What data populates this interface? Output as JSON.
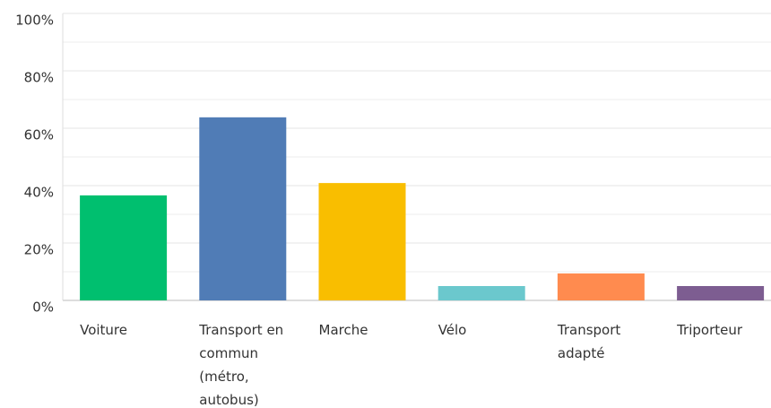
{
  "chart_data": {
    "type": "bar",
    "categories": [
      "Voiture",
      "Transport en commun (métro, autobus)",
      "Marche",
      "Vélo",
      "Transport adapté",
      "Triporteur"
    ],
    "values": [
      36.6,
      63.8,
      40.9,
      5,
      9.4,
      5
    ],
    "colors": [
      "#00bf6f",
      "#507cb6",
      "#f9be00",
      "#6bc8cd",
      "#ff8b4f",
      "#7d5d91"
    ],
    "ylim": [
      0,
      100
    ],
    "yticks": [
      {
        "value": 0,
        "label": "0%"
      },
      {
        "value": 20,
        "label": "20%"
      },
      {
        "value": 40,
        "label": "40%"
      },
      {
        "value": 60,
        "label": "60%"
      },
      {
        "value": 80,
        "label": "80%"
      },
      {
        "value": 100,
        "label": "100%"
      }
    ],
    "minor_yticks": [
      10,
      30,
      50,
      70,
      90
    ],
    "grid": true
  }
}
